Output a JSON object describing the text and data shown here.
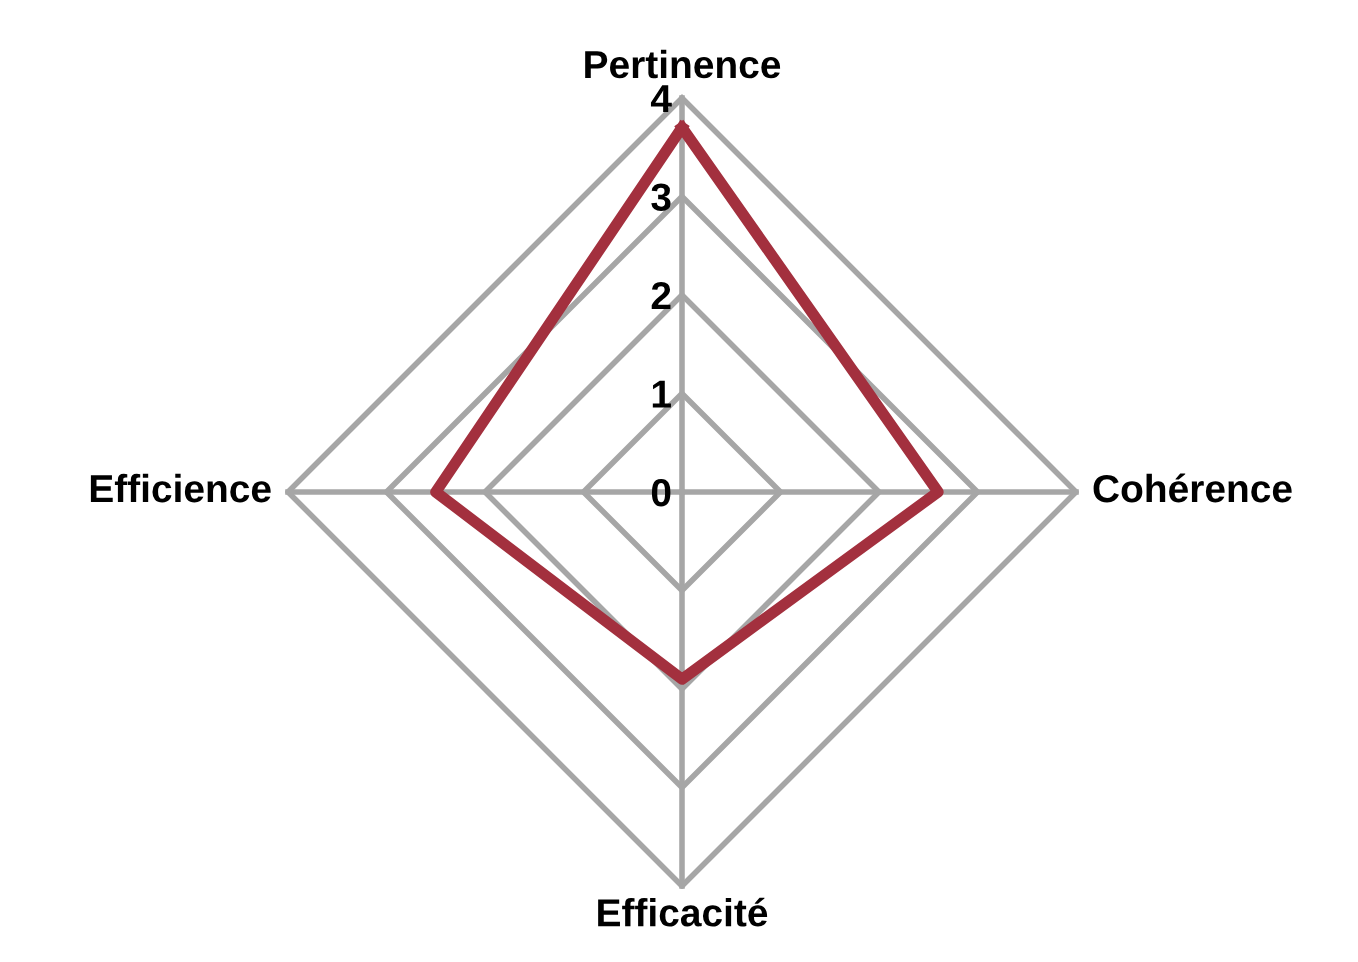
{
  "chart_data": {
    "type": "radar",
    "categories": [
      "Pertinence",
      "Cohérence",
      "Efficacité",
      "Efficience"
    ],
    "series": [
      {
        "color": "#a3303e",
        "values": [
          3.7,
          2.6,
          1.9,
          2.5
        ]
      }
    ],
    "ylim": [
      0,
      4
    ],
    "yticks": [
      0,
      1,
      2,
      3,
      4
    ],
    "grid": true
  }
}
